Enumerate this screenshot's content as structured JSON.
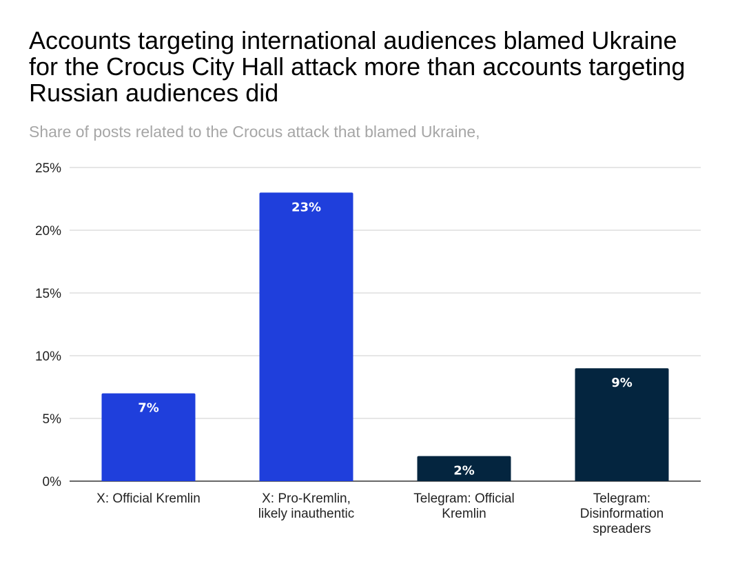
{
  "chart_data": {
    "type": "bar",
    "title": "Accounts targeting international audiences blamed Ukraine for the Crocus City Hall attack more than accounts targeting Russian audiences did",
    "subtitle": "Share of posts related to the Crocus attack that blamed Ukraine,",
    "xlabel": "",
    "ylabel": "",
    "ylim": [
      0,
      25
    ],
    "yticks": [
      0,
      5,
      10,
      15,
      20,
      25
    ],
    "ytick_labels": [
      "0%",
      "5%",
      "10%",
      "15%",
      "20%",
      "25%"
    ],
    "grid": true,
    "legend": "none",
    "categories": [
      "X: Official Kremlin",
      "X: Pro-Kremlin, likely inauthentic",
      "Telegram: Official Kremlin",
      "Telegram: Disinformation spreaders"
    ],
    "category_lines": [
      [
        "X: Official Kremlin"
      ],
      [
        "X: Pro-Kremlin,",
        "likely inauthentic"
      ],
      [
        "Telegram: Official",
        "Kremlin"
      ],
      [
        "Telegram:",
        "Disinformation",
        "spreaders"
      ]
    ],
    "values": [
      7,
      23,
      2,
      9
    ],
    "data_labels": [
      "7%",
      "23%",
      "2%",
      "9%"
    ],
    "bar_colors": [
      "#1f3fdc",
      "#1f3fdc",
      "#04253f",
      "#04253f"
    ]
  }
}
